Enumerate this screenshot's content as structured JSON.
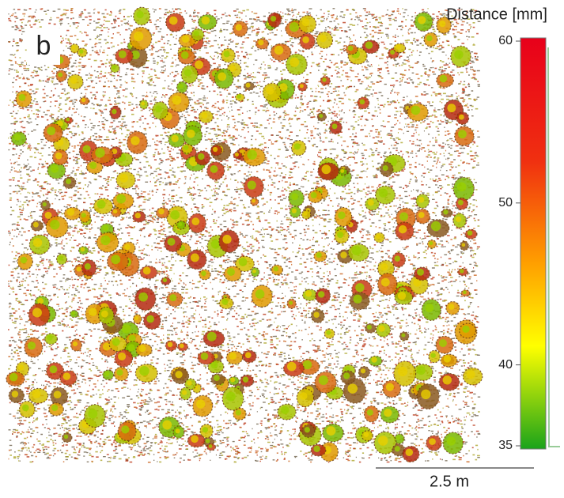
{
  "panel_label": "b",
  "colorbar": {
    "title": "Distance [mm]",
    "lim": [
      35,
      60
    ],
    "ticks": [
      35,
      40,
      50,
      60
    ]
  },
  "scale_bar": {
    "label": "2.5 m"
  }
}
